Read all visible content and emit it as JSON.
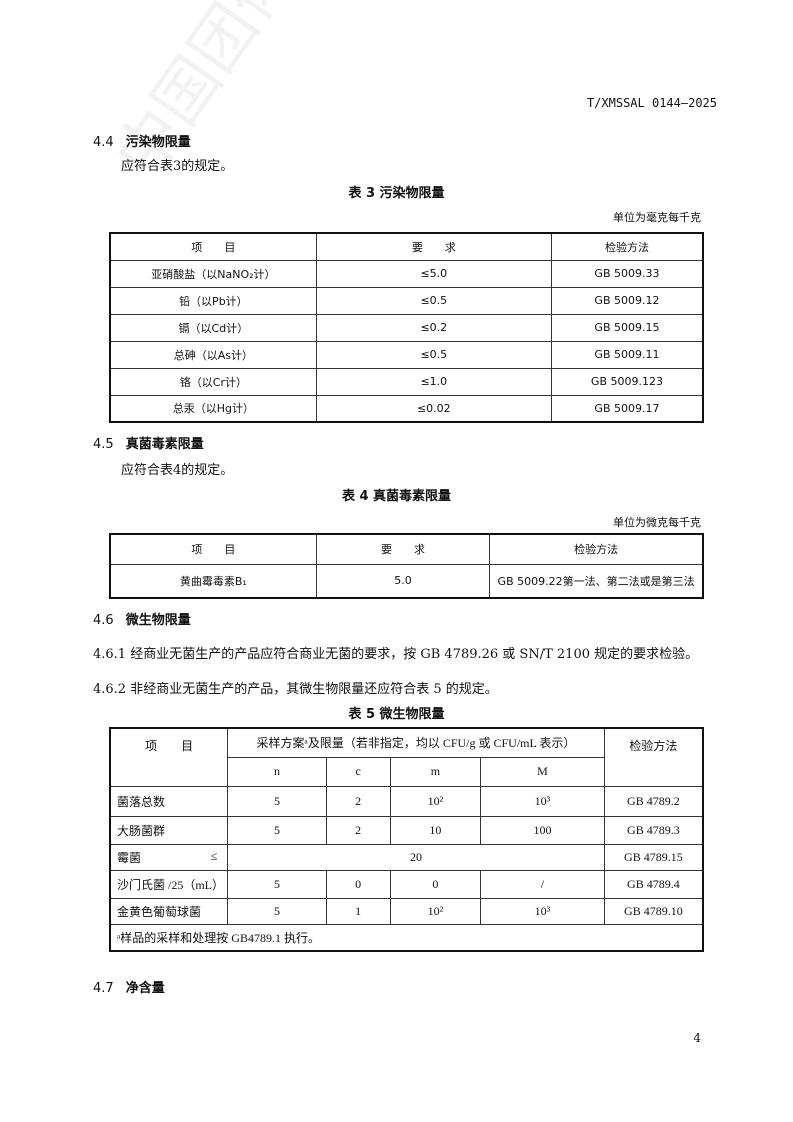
{
  "header": {
    "doc_code": "T/XMSSAL 0144—2025"
  },
  "sections": {
    "s44": {
      "num": "4.4",
      "title": "污染物限量",
      "text": "应符合表3的规定。"
    },
    "s45": {
      "num": "4.5",
      "title": "真菌毒素限量",
      "text": "应符合表4的规定。"
    },
    "s46": {
      "num": "4.6",
      "title": "微生物限量",
      "p461": "4.6.1 经商业无菌生产的产品应符合商业无菌的要求，按 GB 4789.26 或 SN/T 2100 规定的要求检验。",
      "p462": "4.6.2 非经商业无菌生产的产品，其微生物限量还应符合表 5 的规定。"
    },
    "s47": {
      "num": "4.7",
      "title": "净含量"
    }
  },
  "table3": {
    "caption": "表 3   污染物限量",
    "unit": "单位为毫克每千克",
    "headers": [
      "项　　目",
      "要　　求",
      "检验方法"
    ],
    "rows": [
      [
        "亚硝酸盐（以NaNO₂计）",
        "≤5.0",
        "GB 5009.33"
      ],
      [
        "铅（以Pb计）",
        "≤0.5",
        "GB 5009.12"
      ],
      [
        "镉（以Cd计）",
        "≤0.2",
        "GB 5009.15"
      ],
      [
        "总砷（以As计）",
        "≤0.5",
        "GB 5009.11"
      ],
      [
        "铬（以Cr计）",
        "≤1.0",
        "GB 5009.123"
      ],
      [
        "总汞（以Hg计）",
        "≤0.02",
        "GB 5009.17"
      ]
    ]
  },
  "table4": {
    "caption": "表 4   真菌毒素限量",
    "unit": "单位为微克每千克",
    "headers": [
      "项　　目",
      "要　　求",
      "检验方法"
    ],
    "rows": [
      [
        "黄曲霉毒素B₁",
        "5.0",
        "GB 5009.22第一法、第二法或是第三法"
      ]
    ]
  },
  "table5": {
    "caption": "表 5   微生物限量",
    "header_item": "项　　目",
    "header_plan": "采样方案ᵃ及限量（若非指定，均以 CFU/g 或 CFU/mL 表示）",
    "header_method": "检验方法",
    "sub": [
      "n",
      "c",
      "m",
      "M"
    ],
    "rows": [
      [
        "菌落总数",
        "5",
        "2",
        "10²",
        "10³",
        "GB 4789.2"
      ],
      [
        "大肠菌群",
        "5",
        "2",
        "10",
        "100",
        "GB 4789.3"
      ],
      [
        "沙门氏菌 /25（mL）",
        "5",
        "0",
        "0",
        "/",
        "GB 4789.4"
      ],
      [
        "金黄色葡萄球菌",
        "5",
        "1",
        "10²",
        "10³",
        "GB 4789.10"
      ]
    ],
    "mold": {
      "item": "霉菌",
      "le": "≤",
      "value": "20",
      "method": "GB 4789.15"
    },
    "footnote": "ᵃ样品的采样和处理按 GB4789.1 执行。"
  },
  "page_number": "4"
}
